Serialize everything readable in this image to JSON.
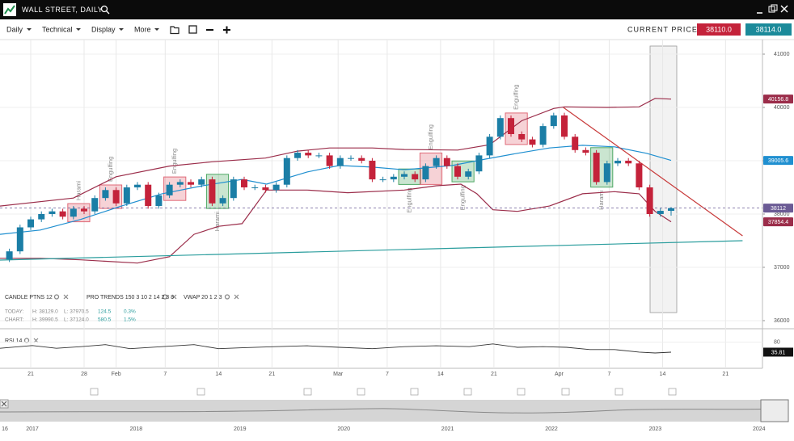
{
  "header": {
    "title": "WALL STREET, DAILY"
  },
  "toolbar": {
    "menus": [
      "Daily",
      "Technical",
      "Display",
      "More"
    ],
    "price_label": "CURRENT PRICE:",
    "bid": "38110.0",
    "ask": "38114.0"
  },
  "chart_data": {
    "type": "candlestick",
    "xlim": [
      -0.88,
      70.56
    ],
    "xticks": [
      {
        "value": 2,
        "label": "21"
      },
      {
        "value": 7,
        "label": "28"
      },
      {
        "value": 10,
        "label": "Feb"
      },
      {
        "value": 14.6,
        "label": "7"
      },
      {
        "value": 19.6,
        "label": "14"
      },
      {
        "value": 24.6,
        "label": "21"
      },
      {
        "value": 30.8,
        "label": "Mar"
      },
      {
        "value": 35.4,
        "label": "7"
      },
      {
        "value": 40.4,
        "label": "14"
      },
      {
        "value": 45.4,
        "label": "21"
      },
      {
        "value": 51.5,
        "label": "Apr"
      },
      {
        "value": 56.2,
        "label": "7"
      },
      {
        "value": 61.2,
        "label": "14"
      },
      {
        "value": 67.1,
        "label": "21"
      }
    ],
    "ylim": [
      35848,
      41273
    ],
    "yticks": [
      36000,
      37000,
      38000,
      39000,
      40000,
      41000
    ],
    "grid": true,
    "candles": {
      "up_color": "#1b7ea6",
      "down_color": "#c4223a",
      "open": [
        37150,
        37300,
        37750,
        37900,
        38000,
        38050,
        37950,
        38100,
        38050,
        38300,
        38450,
        38200,
        38500,
        38550,
        38150,
        38350,
        38550,
        38600,
        38550,
        38650,
        38200,
        38300,
        38650,
        38500,
        38500,
        38450,
        38550,
        39050,
        39150,
        39100,
        39100,
        38900,
        39050,
        39050,
        39000,
        38650,
        38650,
        38700,
        38750,
        38650,
        38900,
        39050,
        38900,
        38700,
        38800,
        39100,
        39450,
        39800,
        39500,
        39400,
        39300,
        39650,
        39850,
        39450,
        39200,
        39150,
        38600,
        38950,
        39000,
        38950,
        38500,
        38000,
        38060
      ],
      "high": [
        37350,
        37800,
        37950,
        38050,
        38100,
        38100,
        38150,
        38150,
        38350,
        38500,
        38500,
        38550,
        38600,
        38600,
        38400,
        38600,
        38650,
        38650,
        38700,
        38700,
        38350,
        38700,
        38700,
        38550,
        38550,
        38600,
        39100,
        39200,
        39200,
        39150,
        39150,
        39100,
        39100,
        39100,
        39050,
        38700,
        38750,
        38800,
        38800,
        38950,
        39100,
        39100,
        38950,
        38850,
        39150,
        39500,
        39850,
        39850,
        39550,
        39450,
        39700,
        39900,
        39900,
        39500,
        39250,
        39200,
        39000,
        39050,
        39050,
        39000,
        38550,
        38110,
        38129
      ],
      "low": [
        37100,
        37250,
        37700,
        37850,
        37950,
        37900,
        37900,
        38000,
        38000,
        38250,
        38150,
        38150,
        38450,
        38100,
        38100,
        38300,
        38500,
        38500,
        38500,
        38150,
        38150,
        38250,
        38450,
        38450,
        38400,
        38400,
        38500,
        39000,
        39050,
        39050,
        38850,
        38850,
        39000,
        38950,
        38600,
        38600,
        38600,
        38650,
        38600,
        38600,
        38850,
        38850,
        38650,
        38650,
        38750,
        39050,
        39400,
        39450,
        39350,
        39250,
        39250,
        39600,
        39400,
        39150,
        39100,
        38550,
        38550,
        38900,
        38900,
        38450,
        37950,
        37950,
        37970
      ],
      "close": [
        37300,
        37750,
        37900,
        38000,
        38050,
        37950,
        38100,
        38050,
        38300,
        38450,
        38200,
        38500,
        38550,
        38150,
        38350,
        38550,
        38600,
        38550,
        38650,
        38200,
        38300,
        38650,
        38500,
        38500,
        38450,
        38550,
        39050,
        39150,
        39100,
        39100,
        38900,
        39050,
        39050,
        39000,
        38650,
        38650,
        38700,
        38750,
        38650,
        38900,
        39050,
        38900,
        38700,
        38800,
        39100,
        39450,
        39800,
        39500,
        39400,
        39300,
        39650,
        39850,
        39450,
        39200,
        39150,
        38600,
        38950,
        39000,
        38950,
        38500,
        38000,
        38060,
        38110
      ]
    },
    "lines": [
      {
        "color": "#9b2d4a",
        "tag": true,
        "x": [
          -0.88,
          6,
          10,
          15,
          19,
          24,
          27,
          30,
          34,
          37,
          42,
          45,
          48,
          51,
          52,
          56,
          59,
          60.5,
          62
        ],
        "values": [
          38150,
          38300,
          38700,
          38900,
          38980,
          39050,
          39180,
          39240,
          39240,
          39210,
          39200,
          39300,
          39750,
          39980,
          40010,
          40000,
          40010,
          40170,
          40156.8
        ]
      },
      {
        "color": "#1f8fd0",
        "tag": true,
        "x": [
          -0.88,
          2.9,
          6.7,
          10.5,
          14.3,
          18.1,
          21.8,
          24.1,
          27.9,
          30.9,
          34,
          37,
          41.5,
          44.6,
          47.6,
          50.6,
          53.7,
          56.7,
          59.7,
          62
        ],
        "values": [
          37620,
          37700,
          37900,
          38150,
          38380,
          38530,
          38650,
          38560,
          38790,
          38910,
          38880,
          38830,
          38910,
          39030,
          39140,
          39240,
          39290,
          39260,
          39140,
          39005.6
        ]
      },
      {
        "color": "#9b2d4a",
        "tag": true,
        "x": [
          -0.88,
          2.9,
          6.7,
          12,
          15,
          17.3,
          19.6,
          21.8,
          24.1,
          27.9,
          31.7,
          37,
          40,
          42.3,
          43.8,
          45.3,
          47.6,
          50.6,
          53.7,
          56.7,
          59,
          60.5,
          62
        ],
        "values": [
          37170,
          37170,
          37140,
          37080,
          37200,
          37620,
          37770,
          37820,
          38450,
          38450,
          38400,
          38450,
          38530,
          38560,
          38380,
          38080,
          38050,
          38150,
          38380,
          38420,
          38380,
          38050,
          37854.4
        ]
      },
      {
        "color": "#c83a3a",
        "tag": false,
        "x": [
          51.9,
          68.7
        ],
        "values": [
          40000,
          37591
        ]
      },
      {
        "color": "#2a9d9d",
        "tag": false,
        "x": [
          -0.88,
          68.7
        ],
        "values": [
          37136,
          37500
        ]
      }
    ],
    "price_line": {
      "value": 38112,
      "color": "#6b5b95"
    },
    "annotations": [
      {
        "label": "Harami",
        "from": 6,
        "to": 7,
        "color": "#e06a78",
        "side": "above"
      },
      {
        "label": "Engulfing",
        "from": 9,
        "to": 10,
        "color": "#e06a78",
        "side": "above"
      },
      {
        "label": "Engulfing",
        "from": 15,
        "to": 16,
        "color": "#e06a78",
        "side": "above"
      },
      {
        "label": "Harami",
        "from": 19,
        "to": 20,
        "color": "#4fa865",
        "side": "below"
      },
      {
        "label": "Engulfing",
        "from": 37,
        "to": 38,
        "color": "#4fa865",
        "side": "below"
      },
      {
        "label": "Engulfing",
        "from": 39,
        "to": 40,
        "color": "#e06a78",
        "side": "above"
      },
      {
        "label": "Engulfing",
        "from": 42,
        "to": 43,
        "color": "#4fa865",
        "side": "below"
      },
      {
        "label": "Engulfing",
        "from": 47,
        "to": 48,
        "color": "#e06a78",
        "side": "above"
      },
      {
        "label": "Harami",
        "from": 55,
        "to": 56,
        "color": "#4fa865",
        "side": "below"
      }
    ],
    "legend": [
      "CANDLE PTNS 12",
      "PRO TRENDS 150 3 10 2 14 2 3 8",
      "VWAP 20 1 2 3"
    ],
    "stats": [
      {
        "label": "TODAY:",
        "high": "H: 38129.0",
        "low": "L: 37970.5",
        "change": "124.5",
        "percent": "0.3%"
      },
      {
        "label": "CHART:",
        "high": "H: 39990.5",
        "low": "L: 37124.0",
        "change": "580.5",
        "percent": "1.5%"
      }
    ]
  },
  "rsi": {
    "type": "line",
    "label": "RSI 14",
    "color": "#333333",
    "ylim": [
      0,
      100
    ],
    "yticks": [
      80
    ],
    "x": [
      -0.88,
      2.15,
      4.4,
      6.7,
      9,
      11.3,
      14.3,
      17.3,
      19.6,
      21.8,
      24.9,
      27.9,
      30.9,
      34,
      37,
      40,
      43.1,
      45.3,
      47.6,
      50,
      52.2,
      54.4,
      56.7,
      59,
      60.5,
      62
    ],
    "values": [
      53,
      65,
      53,
      60,
      69,
      51,
      60,
      69,
      51,
      55,
      60,
      64,
      57,
      51,
      60,
      64,
      60,
      72,
      57,
      60,
      57,
      47,
      47,
      36,
      32,
      35.81
    ]
  },
  "navigator": {
    "years": [
      "16",
      "2017",
      "2018",
      "2019",
      "2020",
      "2021",
      "2022",
      "2023",
      "2024"
    ]
  }
}
